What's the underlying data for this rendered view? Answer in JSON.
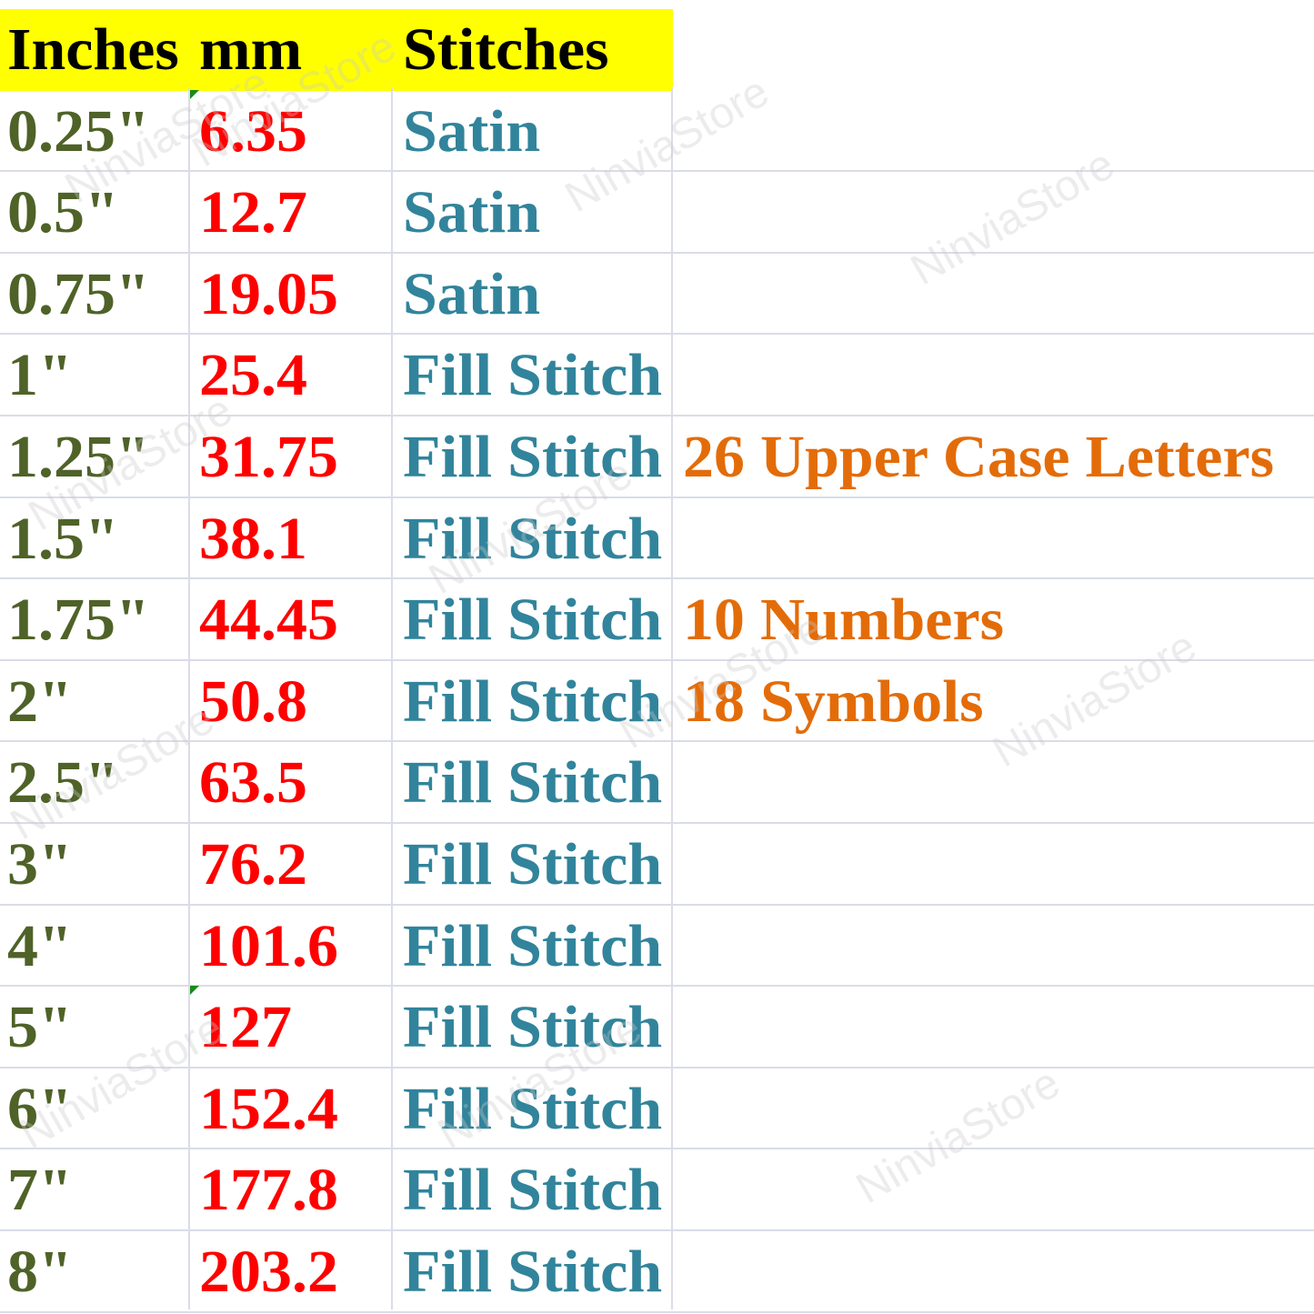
{
  "headers": {
    "inches": "Inches",
    "mm": "mm",
    "stitches": "Stitches"
  },
  "rows": [
    {
      "inches": "0.25\"",
      "mm": "6.35",
      "stitch": "Satin",
      "note": ""
    },
    {
      "inches": "0.5\"",
      "mm": "12.7",
      "stitch": "Satin",
      "note": ""
    },
    {
      "inches": "0.75\"",
      "mm": "19.05",
      "stitch": "Satin",
      "note": ""
    },
    {
      "inches": "1\"",
      "mm": "25.4",
      "stitch": "Fill Stitch",
      "note": ""
    },
    {
      "inches": "1.25\"",
      "mm": "31.75",
      "stitch": "Fill Stitch",
      "note": "26 Upper Case Letters"
    },
    {
      "inches": "1.5\"",
      "mm": "38.1",
      "stitch": "Fill Stitch",
      "note": ""
    },
    {
      "inches": "1.75\"",
      "mm": "44.45",
      "stitch": "Fill Stitch",
      "note": "10 Numbers"
    },
    {
      "inches": "2\"",
      "mm": "50.8",
      "stitch": "Fill Stitch",
      "note": "18 Symbols"
    },
    {
      "inches": "2.5\"",
      "mm": "63.5",
      "stitch": "Fill Stitch",
      "note": ""
    },
    {
      "inches": "3\"",
      "mm": "76.2",
      "stitch": "Fill Stitch",
      "note": ""
    },
    {
      "inches": "4\"",
      "mm": "101.6",
      "stitch": "Fill Stitch",
      "note": ""
    },
    {
      "inches": "5\"",
      "mm": "127",
      "stitch": "Fill Stitch",
      "note": ""
    },
    {
      "inches": "6\"",
      "mm": "152.4",
      "stitch": "Fill Stitch",
      "note": ""
    },
    {
      "inches": "7\"",
      "mm": "177.8",
      "stitch": "Fill Stitch",
      "note": ""
    },
    {
      "inches": "8\"",
      "mm": "203.2",
      "stitch": "Fill Stitch",
      "note": ""
    }
  ],
  "watermark": "NinviaStore",
  "colors": {
    "header_bg": "#ffff00",
    "inches": "#4f6228",
    "mm": "#ff0000",
    "stitch": "#31849b",
    "note": "#e36c09"
  }
}
